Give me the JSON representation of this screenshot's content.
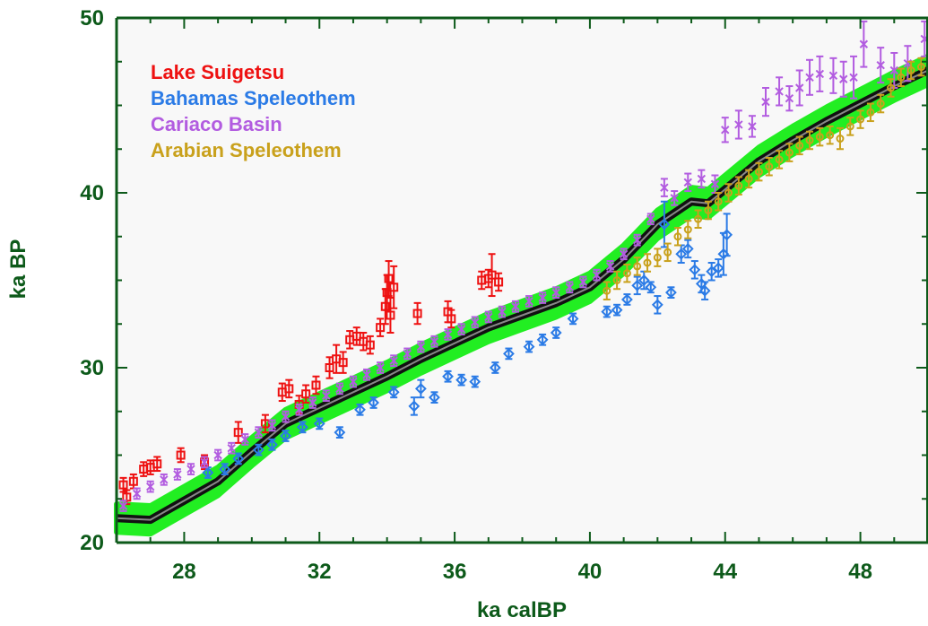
{
  "chart_data": {
    "type": "scatter",
    "xlabel": "ka calBP",
    "ylabel": "ka BP",
    "xlim": [
      26,
      50
    ],
    "ylim": [
      20,
      50
    ],
    "x_ticks": [
      28,
      32,
      36,
      40,
      44,
      48
    ],
    "y_ticks": [
      20,
      30,
      40,
      50
    ],
    "legend_position": "top-left",
    "colors": {
      "frame": "#0d5a1a",
      "plot_bg": "#f8f8f8",
      "band": "#22ee22",
      "curve": "#111111",
      "curve_center": "#888888"
    },
    "curve": {
      "x": [
        26,
        27,
        28,
        29,
        30,
        31,
        32,
        33,
        34,
        35,
        36,
        37,
        38,
        39,
        40,
        41,
        42,
        43,
        43.5,
        44,
        45,
        46,
        47,
        48,
        49,
        50
      ],
      "y": [
        21.4,
        21.3,
        22.4,
        23.5,
        25.2,
        26.8,
        27.7,
        28.6,
        29.5,
        30.5,
        31.4,
        32.3,
        33.0,
        33.7,
        34.6,
        36.2,
        38.2,
        39.5,
        39.4,
        40.2,
        41.8,
        43.0,
        44.1,
        45.1,
        46.1,
        47.0
      ],
      "band_halfwidth": 0.8
    },
    "series": [
      {
        "name": "Lake Suigetsu",
        "color": "#ee1111",
        "marker": "square",
        "points": [
          {
            "x": 26.2,
            "y": 23.3,
            "e": 0.4
          },
          {
            "x": 26.3,
            "y": 22.6,
            "e": 0.4
          },
          {
            "x": 26.5,
            "y": 23.5,
            "e": 0.4
          },
          {
            "x": 26.8,
            "y": 24.2,
            "e": 0.4
          },
          {
            "x": 27.0,
            "y": 24.3,
            "e": 0.4
          },
          {
            "x": 27.2,
            "y": 24.5,
            "e": 0.4
          },
          {
            "x": 27.9,
            "y": 25.0,
            "e": 0.4
          },
          {
            "x": 28.6,
            "y": 24.6,
            "e": 0.4
          },
          {
            "x": 29.6,
            "y": 26.3,
            "e": 0.6
          },
          {
            "x": 30.4,
            "y": 26.8,
            "e": 0.5
          },
          {
            "x": 30.9,
            "y": 28.6,
            "e": 0.5
          },
          {
            "x": 31.1,
            "y": 28.8,
            "e": 0.5
          },
          {
            "x": 31.4,
            "y": 27.9,
            "e": 0.5
          },
          {
            "x": 31.6,
            "y": 28.5,
            "e": 0.5
          },
          {
            "x": 31.9,
            "y": 29.0,
            "e": 0.5
          },
          {
            "x": 32.3,
            "y": 30.0,
            "e": 0.6
          },
          {
            "x": 32.5,
            "y": 30.5,
            "e": 0.8
          },
          {
            "x": 32.7,
            "y": 30.3,
            "e": 0.6
          },
          {
            "x": 32.9,
            "y": 31.6,
            "e": 0.5
          },
          {
            "x": 33.1,
            "y": 31.8,
            "e": 0.5
          },
          {
            "x": 33.3,
            "y": 31.5,
            "e": 0.5
          },
          {
            "x": 33.5,
            "y": 31.3,
            "e": 0.5
          },
          {
            "x": 33.8,
            "y": 32.3,
            "e": 0.5
          },
          {
            "x": 33.95,
            "y": 33.5,
            "e": 1.0
          },
          {
            "x": 34.0,
            "y": 34.3,
            "e": 1.0
          },
          {
            "x": 34.05,
            "y": 35.1,
            "e": 1.0
          },
          {
            "x": 34.1,
            "y": 33.0,
            "e": 1.0
          },
          {
            "x": 34.2,
            "y": 34.6,
            "e": 1.2
          },
          {
            "x": 34.9,
            "y": 33.1,
            "e": 0.6
          },
          {
            "x": 35.8,
            "y": 33.2,
            "e": 0.6
          },
          {
            "x": 35.9,
            "y": 32.8,
            "e": 0.5
          },
          {
            "x": 36.8,
            "y": 35.0,
            "e": 0.5
          },
          {
            "x": 37.0,
            "y": 35.1,
            "e": 0.5
          },
          {
            "x": 37.1,
            "y": 35.3,
            "e": 1.2
          },
          {
            "x": 37.3,
            "y": 34.9,
            "e": 0.5
          }
        ]
      },
      {
        "name": "Bahamas Speleothem",
        "color": "#2b7be6",
        "marker": "diamond",
        "points": [
          {
            "x": 28.7,
            "y": 24.0,
            "e": 0.3
          },
          {
            "x": 29.2,
            "y": 24.2,
            "e": 0.3
          },
          {
            "x": 29.6,
            "y": 24.8,
            "e": 0.3
          },
          {
            "x": 30.2,
            "y": 25.3,
            "e": 0.3
          },
          {
            "x": 30.6,
            "y": 25.6,
            "e": 0.3
          },
          {
            "x": 31.0,
            "y": 26.1,
            "e": 0.3
          },
          {
            "x": 31.5,
            "y": 26.6,
            "e": 0.3
          },
          {
            "x": 32.0,
            "y": 26.8,
            "e": 0.3
          },
          {
            "x": 32.6,
            "y": 26.3,
            "e": 0.3
          },
          {
            "x": 33.2,
            "y": 27.6,
            "e": 0.3
          },
          {
            "x": 33.6,
            "y": 28.0,
            "e": 0.3
          },
          {
            "x": 34.2,
            "y": 28.6,
            "e": 0.3
          },
          {
            "x": 34.8,
            "y": 27.8,
            "e": 0.5
          },
          {
            "x": 35.0,
            "y": 28.8,
            "e": 0.5
          },
          {
            "x": 35.4,
            "y": 28.3,
            "e": 0.3
          },
          {
            "x": 35.8,
            "y": 29.5,
            "e": 0.3
          },
          {
            "x": 36.2,
            "y": 29.3,
            "e": 0.3
          },
          {
            "x": 36.6,
            "y": 29.2,
            "e": 0.3
          },
          {
            "x": 37.2,
            "y": 30.0,
            "e": 0.3
          },
          {
            "x": 37.6,
            "y": 30.8,
            "e": 0.3
          },
          {
            "x": 38.2,
            "y": 31.2,
            "e": 0.3
          },
          {
            "x": 38.6,
            "y": 31.6,
            "e": 0.3
          },
          {
            "x": 39.0,
            "y": 32.0,
            "e": 0.3
          },
          {
            "x": 39.5,
            "y": 32.8,
            "e": 0.3
          },
          {
            "x": 40.5,
            "y": 33.2,
            "e": 0.3
          },
          {
            "x": 40.8,
            "y": 33.3,
            "e": 0.3
          },
          {
            "x": 41.1,
            "y": 33.9,
            "e": 0.3
          },
          {
            "x": 41.4,
            "y": 34.7,
            "e": 0.5
          },
          {
            "x": 41.6,
            "y": 35.0,
            "e": 0.5
          },
          {
            "x": 41.8,
            "y": 34.6,
            "e": 0.3
          },
          {
            "x": 42.0,
            "y": 33.6,
            "e": 0.5
          },
          {
            "x": 42.2,
            "y": 38.2,
            "e": 1.3
          },
          {
            "x": 42.4,
            "y": 34.3,
            "e": 0.3
          },
          {
            "x": 42.7,
            "y": 36.5,
            "e": 0.5
          },
          {
            "x": 42.9,
            "y": 36.8,
            "e": 0.5
          },
          {
            "x": 43.1,
            "y": 35.6,
            "e": 0.5
          },
          {
            "x": 43.3,
            "y": 34.8,
            "e": 0.5
          },
          {
            "x": 43.4,
            "y": 34.4,
            "e": 0.5
          },
          {
            "x": 43.6,
            "y": 35.5,
            "e": 0.5
          },
          {
            "x": 43.8,
            "y": 35.7,
            "e": 0.5
          },
          {
            "x": 43.95,
            "y": 36.5,
            "e": 1.2
          },
          {
            "x": 44.05,
            "y": 37.6,
            "e": 1.2
          }
        ]
      },
      {
        "name": "Cariaco Basin",
        "color": "#b25ce0",
        "marker": "cross",
        "points": [
          {
            "x": 26.2,
            "y": 22.1,
            "e": 0.3
          },
          {
            "x": 26.6,
            "y": 22.8,
            "e": 0.3
          },
          {
            "x": 27.0,
            "y": 23.2,
            "e": 0.3
          },
          {
            "x": 27.4,
            "y": 23.6,
            "e": 0.3
          },
          {
            "x": 27.8,
            "y": 23.9,
            "e": 0.3
          },
          {
            "x": 28.2,
            "y": 24.2,
            "e": 0.3
          },
          {
            "x": 28.6,
            "y": 24.6,
            "e": 0.3
          },
          {
            "x": 29.0,
            "y": 25.0,
            "e": 0.3
          },
          {
            "x": 29.4,
            "y": 25.4,
            "e": 0.3
          },
          {
            "x": 29.8,
            "y": 25.9,
            "e": 0.3
          },
          {
            "x": 30.2,
            "y": 26.3,
            "e": 0.3
          },
          {
            "x": 30.6,
            "y": 26.7,
            "e": 0.3
          },
          {
            "x": 31.0,
            "y": 27.2,
            "e": 0.3
          },
          {
            "x": 31.4,
            "y": 27.6,
            "e": 0.3
          },
          {
            "x": 31.8,
            "y": 28.0,
            "e": 0.3
          },
          {
            "x": 32.2,
            "y": 28.4,
            "e": 0.3
          },
          {
            "x": 32.6,
            "y": 28.8,
            "e": 0.3
          },
          {
            "x": 33.0,
            "y": 29.2,
            "e": 0.3
          },
          {
            "x": 33.4,
            "y": 29.6,
            "e": 0.3
          },
          {
            "x": 33.8,
            "y": 30.0,
            "e": 0.3
          },
          {
            "x": 34.2,
            "y": 30.4,
            "e": 0.3
          },
          {
            "x": 34.6,
            "y": 30.8,
            "e": 0.3
          },
          {
            "x": 35.0,
            "y": 31.2,
            "e": 0.3
          },
          {
            "x": 35.4,
            "y": 31.5,
            "e": 0.3
          },
          {
            "x": 35.8,
            "y": 31.9,
            "e": 0.3
          },
          {
            "x": 36.2,
            "y": 32.2,
            "e": 0.3
          },
          {
            "x": 36.6,
            "y": 32.6,
            "e": 0.3
          },
          {
            "x": 37.0,
            "y": 32.9,
            "e": 0.3
          },
          {
            "x": 37.4,
            "y": 33.2,
            "e": 0.3
          },
          {
            "x": 37.8,
            "y": 33.5,
            "e": 0.3
          },
          {
            "x": 38.2,
            "y": 33.8,
            "e": 0.3
          },
          {
            "x": 38.6,
            "y": 34.0,
            "e": 0.3
          },
          {
            "x": 39.0,
            "y": 34.3,
            "e": 0.3
          },
          {
            "x": 39.4,
            "y": 34.6,
            "e": 0.3
          },
          {
            "x": 39.8,
            "y": 34.9,
            "e": 0.3
          },
          {
            "x": 40.2,
            "y": 35.3,
            "e": 0.3
          },
          {
            "x": 40.6,
            "y": 35.8,
            "e": 0.3
          },
          {
            "x": 41.0,
            "y": 36.5,
            "e": 0.3
          },
          {
            "x": 41.4,
            "y": 37.3,
            "e": 0.3
          },
          {
            "x": 41.8,
            "y": 38.5,
            "e": 0.3
          },
          {
            "x": 42.2,
            "y": 40.3,
            "e": 0.5
          },
          {
            "x": 42.5,
            "y": 39.7,
            "e": 0.4
          },
          {
            "x": 42.9,
            "y": 40.6,
            "e": 0.5
          },
          {
            "x": 43.3,
            "y": 40.8,
            "e": 0.5
          },
          {
            "x": 43.7,
            "y": 40.5,
            "e": 0.5
          },
          {
            "x": 44.0,
            "y": 43.6,
            "e": 0.7
          },
          {
            "x": 44.4,
            "y": 43.9,
            "e": 0.8
          },
          {
            "x": 44.8,
            "y": 43.8,
            "e": 0.6
          },
          {
            "x": 45.2,
            "y": 45.2,
            "e": 0.8
          },
          {
            "x": 45.6,
            "y": 45.8,
            "e": 0.8
          },
          {
            "x": 45.9,
            "y": 45.4,
            "e": 0.7
          },
          {
            "x": 46.2,
            "y": 46.0,
            "e": 1.0
          },
          {
            "x": 46.5,
            "y": 46.6,
            "e": 1.0
          },
          {
            "x": 46.8,
            "y": 46.8,
            "e": 1.0
          },
          {
            "x": 47.2,
            "y": 46.7,
            "e": 1.0
          },
          {
            "x": 47.5,
            "y": 46.5,
            "e": 1.0
          },
          {
            "x": 47.8,
            "y": 46.6,
            "e": 1.2
          },
          {
            "x": 48.1,
            "y": 48.5,
            "e": 1.3
          },
          {
            "x": 48.6,
            "y": 47.3,
            "e": 1.0
          },
          {
            "x": 49.0,
            "y": 47.0,
            "e": 1.0
          },
          {
            "x": 49.4,
            "y": 47.4,
            "e": 1.0
          },
          {
            "x": 49.9,
            "y": 48.8,
            "e": 1.0
          }
        ]
      },
      {
        "name": "Arabian Speleothem",
        "color": "#c9a11c",
        "marker": "circle",
        "points": [
          {
            "x": 40.5,
            "y": 34.4,
            "e": 0.5
          },
          {
            "x": 40.8,
            "y": 35.0,
            "e": 0.5
          },
          {
            "x": 41.1,
            "y": 35.4,
            "e": 0.5
          },
          {
            "x": 41.4,
            "y": 35.8,
            "e": 0.5
          },
          {
            "x": 41.7,
            "y": 36.0,
            "e": 0.5
          },
          {
            "x": 42.0,
            "y": 36.3,
            "e": 0.5
          },
          {
            "x": 42.3,
            "y": 36.6,
            "e": 0.5
          },
          {
            "x": 42.6,
            "y": 37.5,
            "e": 0.5
          },
          {
            "x": 42.9,
            "y": 37.9,
            "e": 0.5
          },
          {
            "x": 43.2,
            "y": 38.5,
            "e": 0.5
          },
          {
            "x": 43.5,
            "y": 39.0,
            "e": 0.5
          },
          {
            "x": 43.8,
            "y": 39.5,
            "e": 0.5
          },
          {
            "x": 44.1,
            "y": 40.0,
            "e": 0.5
          },
          {
            "x": 44.4,
            "y": 40.4,
            "e": 0.5
          },
          {
            "x": 44.7,
            "y": 40.8,
            "e": 0.5
          },
          {
            "x": 45.0,
            "y": 41.2,
            "e": 0.5
          },
          {
            "x": 45.3,
            "y": 41.5,
            "e": 0.5
          },
          {
            "x": 45.6,
            "y": 41.9,
            "e": 0.5
          },
          {
            "x": 45.9,
            "y": 42.3,
            "e": 0.5
          },
          {
            "x": 46.2,
            "y": 42.7,
            "e": 0.5
          },
          {
            "x": 46.5,
            "y": 43.0,
            "e": 0.5
          },
          {
            "x": 46.8,
            "y": 43.2,
            "e": 0.5
          },
          {
            "x": 47.1,
            "y": 43.3,
            "e": 0.5
          },
          {
            "x": 47.4,
            "y": 43.1,
            "e": 0.6
          },
          {
            "x": 47.7,
            "y": 43.8,
            "e": 0.5
          },
          {
            "x": 48.0,
            "y": 44.2,
            "e": 0.5
          },
          {
            "x": 48.3,
            "y": 44.6,
            "e": 0.5
          },
          {
            "x": 48.6,
            "y": 45.1,
            "e": 0.5
          },
          {
            "x": 48.9,
            "y": 46.0,
            "e": 0.5
          },
          {
            "x": 49.2,
            "y": 46.6,
            "e": 0.5
          },
          {
            "x": 49.5,
            "y": 47.0,
            "e": 0.5
          },
          {
            "x": 49.8,
            "y": 47.2,
            "e": 0.5
          }
        ]
      }
    ]
  }
}
